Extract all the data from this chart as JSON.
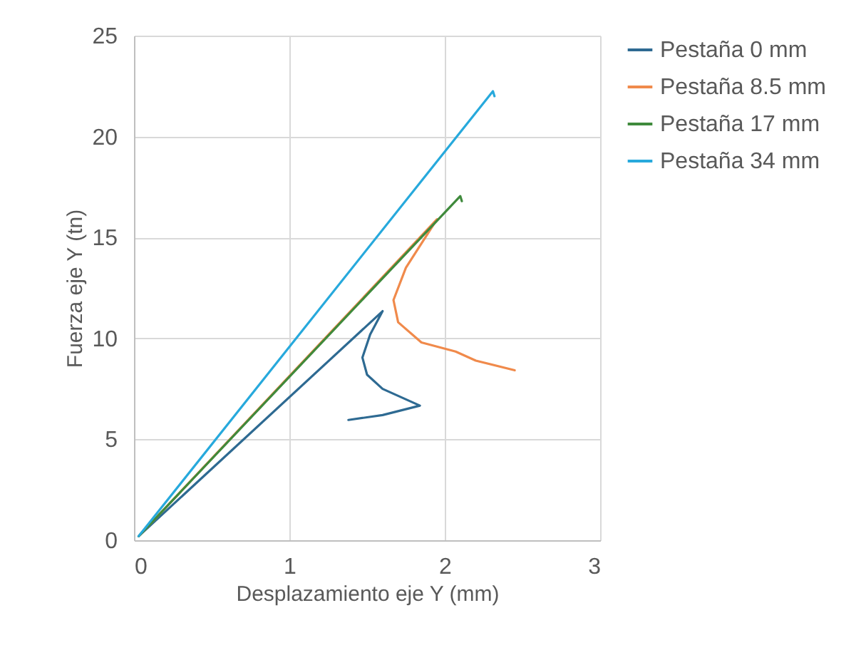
{
  "chart_data": {
    "type": "line",
    "xlabel": "Desplazamiento eje Y (mm)",
    "ylabel": "Fuerza eje   Y (tn)",
    "xlim": [
      0,
      3
    ],
    "xticks": [
      0,
      1,
      2,
      3
    ],
    "ylim": [
      0,
      25
    ],
    "yticks": [
      0,
      5,
      10,
      15,
      20,
      25
    ],
    "grid": true,
    "legend": "right",
    "marker": "none",
    "series": [
      {
        "name": "Pestaña 0 mm",
        "color": "#2e6a92",
        "x": [
          0.03,
          1.6,
          1.52,
          1.47,
          1.5,
          1.6,
          1.84,
          1.6,
          1.38
        ],
        "values": [
          0.2,
          11.35,
          10.2,
          9.05,
          8.2,
          7.5,
          6.67,
          6.2,
          5.96
        ]
      },
      {
        "name": "Pestaña 8.5 mm",
        "color": "#f08a4b",
        "x": [
          0.03,
          1.95,
          1.75,
          1.67,
          1.7,
          1.85,
          2.07,
          2.2,
          2.45
        ],
        "values": [
          0.2,
          15.9,
          13.5,
          11.9,
          10.8,
          9.8,
          9.35,
          8.9,
          8.42
        ]
      },
      {
        "name": "Pestaña 17 mm",
        "color": "#3f8a3c",
        "x": [
          0.03,
          2.1,
          2.11
        ],
        "values": [
          0.2,
          17.05,
          16.8
        ]
      },
      {
        "name": "Pestaña 34 mm",
        "color": "#27a9dc",
        "x": [
          0.03,
          2.31,
          2.32
        ],
        "values": [
          0.2,
          22.25,
          22.0
        ]
      }
    ]
  }
}
